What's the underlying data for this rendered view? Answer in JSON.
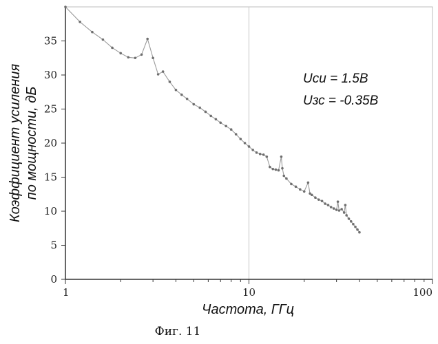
{
  "chart_data": {
    "type": "line",
    "xscale": "log",
    "xlim": [
      1,
      100
    ],
    "ylim": [
      0,
      40
    ],
    "xlabel": "Частота, ГГц",
    "ylabel": "Коэффициент усиления по мощности, дБ",
    "xticks": [
      "1",
      "10",
      "100"
    ],
    "yticks": [
      "0",
      "5",
      "10",
      "15",
      "20",
      "25",
      "30",
      "35"
    ],
    "annotations": [
      "Uси = 1.5В",
      "Uзс = -0.35В"
    ],
    "caption": "Фиг. 11",
    "grid": "vertical major gridline at x = 10",
    "color": "#9a9a9a",
    "series": [
      {
        "x": [
          1.0,
          1.2,
          1.4,
          1.6,
          1.8,
          2.0,
          2.2,
          2.4,
          2.6,
          2.8,
          3.0,
          3.2,
          3.4,
          3.7,
          4.0,
          4.3,
          4.6,
          5.0,
          5.4,
          5.8,
          6.2,
          6.6,
          7.0,
          7.5,
          8.0,
          8.5,
          9.0,
          9.5,
          10.0,
          10.5,
          11.0,
          11.5,
          12.0,
          12.5,
          13.0,
          13.5,
          14.0,
          14.5,
          15.0,
          15.2,
          15.5,
          16.0,
          17.0,
          18.0,
          19.0,
          20.0,
          21.0,
          21.5,
          22.0,
          23.0,
          24.0,
          25.0,
          26.0,
          27.0,
          28.0,
          29.0,
          30.0,
          30.5,
          31.0,
          32.0,
          33.0,
          33.5,
          34.0,
          35.0,
          36.0,
          37.0,
          38.0,
          39.0,
          40.0
        ],
        "y": [
          40.0,
          37.8,
          36.3,
          35.2,
          34.0,
          33.2,
          32.6,
          32.5,
          33.0,
          35.3,
          32.5,
          30.1,
          30.5,
          29.0,
          27.8,
          27.1,
          26.5,
          25.7,
          25.2,
          24.6,
          24.0,
          23.5,
          23.0,
          22.5,
          22.0,
          21.3,
          20.6,
          20.0,
          19.5,
          19.0,
          18.6,
          18.4,
          18.3,
          18.0,
          16.5,
          16.2,
          16.1,
          16.0,
          18.0,
          16.3,
          15.2,
          14.8,
          14.0,
          13.6,
          13.2,
          12.9,
          14.2,
          12.6,
          12.4,
          12.0,
          11.7,
          11.5,
          11.1,
          10.9,
          10.6,
          10.4,
          10.2,
          11.4,
          10.1,
          10.3,
          9.8,
          10.9,
          9.4,
          8.9,
          8.5,
          8.1,
          7.7,
          7.3,
          6.9
        ]
      }
    ]
  }
}
